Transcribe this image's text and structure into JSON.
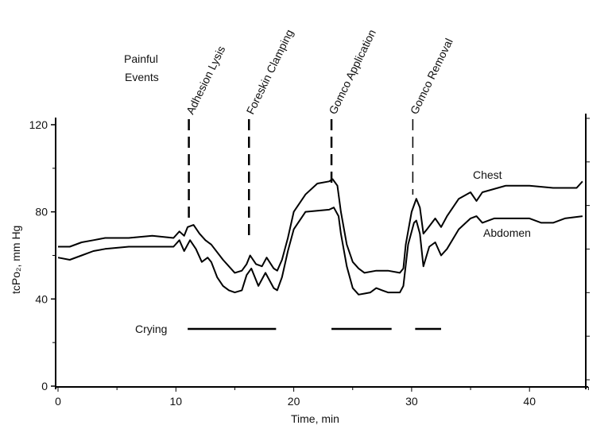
{
  "chart_data": {
    "type": "line",
    "xlabel": "Time, min",
    "ylabel": "tcPo₂, mm Hg",
    "xlim": [
      0,
      45
    ],
    "ylim": [
      0,
      120
    ],
    "xticks": [
      "0",
      "10",
      "20",
      "30",
      "40"
    ],
    "yticks": [
      "0",
      "40",
      "80",
      "120"
    ],
    "grid": false,
    "events_title": [
      "Painful",
      "Events"
    ],
    "events": [
      {
        "label": "Adhesion Lysis",
        "time": 11.1
      },
      {
        "label": "Foreskin Clamping",
        "time": 16.2
      },
      {
        "label": "Gomco Application",
        "time": 23.2
      },
      {
        "label": "Gomco Removal",
        "time": 30.1
      }
    ],
    "crying": {
      "label": "Crying",
      "intervals": [
        [
          11,
          18.5
        ],
        [
          23.2,
          28.3
        ],
        [
          30.3,
          32.5
        ]
      ]
    },
    "series": [
      {
        "name": "Chest",
        "x": [
          0,
          1,
          2,
          3,
          4,
          6,
          8,
          9.8,
          10.3,
          10.7,
          11,
          11.5,
          12,
          12.5,
          13,
          14,
          15,
          15.6,
          16,
          16.3,
          16.8,
          17.3,
          17.7,
          18.3,
          18.6,
          19,
          19.5,
          20,
          21,
          22,
          23,
          23.3,
          23.7,
          24,
          24.5,
          25,
          25.5,
          26,
          27,
          28,
          29,
          29.3,
          29.5,
          30,
          30.4,
          30.7,
          31,
          31.3,
          32,
          32.5,
          33,
          34,
          35,
          35.5,
          36,
          38,
          40,
          42,
          43,
          44,
          44.5
        ],
        "y": [
          64,
          64,
          66,
          67,
          68,
          68,
          69,
          68,
          71,
          69,
          73,
          74,
          70,
          67,
          65,
          58,
          52,
          53,
          56,
          60,
          56,
          55,
          59,
          54,
          53,
          58,
          68,
          80,
          88,
          93,
          94,
          95,
          92,
          80,
          65,
          57,
          54,
          52,
          53,
          53,
          52,
          54,
          65,
          80,
          86,
          82,
          70,
          72,
          77,
          73,
          78,
          86,
          89,
          85,
          89,
          92,
          92,
          91,
          91,
          91,
          94
        ]
      },
      {
        "name": "Abdomen",
        "x": [
          0,
          1,
          2,
          3,
          4,
          6,
          9.8,
          10.3,
          10.7,
          11.2,
          11.7,
          12.2,
          12.7,
          13,
          13.5,
          14,
          14.5,
          15,
          15.6,
          16,
          16.4,
          17,
          17.6,
          18.3,
          18.6,
          19,
          19.5,
          20,
          21,
          23,
          23.4,
          23.8,
          24,
          24.5,
          25,
          25.5,
          26,
          26.5,
          27,
          27.5,
          28,
          29,
          29.3,
          29.7,
          30.2,
          30.4,
          30.7,
          31,
          31.5,
          32,
          32.5,
          33,
          34,
          35,
          35.5,
          36,
          37,
          40,
          41,
          42,
          43,
          44.5
        ],
        "y": [
          59,
          58,
          60,
          62,
          63,
          64,
          64,
          67,
          62,
          67,
          63,
          57,
          59,
          57,
          50,
          46,
          44,
          43,
          44,
          51,
          54,
          46,
          52,
          45,
          44,
          50,
          62,
          72,
          80,
          81,
          82,
          78,
          70,
          55,
          45,
          42,
          42.5,
          43,
          45,
          44,
          43,
          43,
          46,
          65,
          75,
          76,
          70,
          55,
          64,
          66,
          60,
          63,
          72,
          77,
          78,
          75,
          77,
          77,
          75,
          75,
          77,
          78
        ]
      }
    ]
  }
}
